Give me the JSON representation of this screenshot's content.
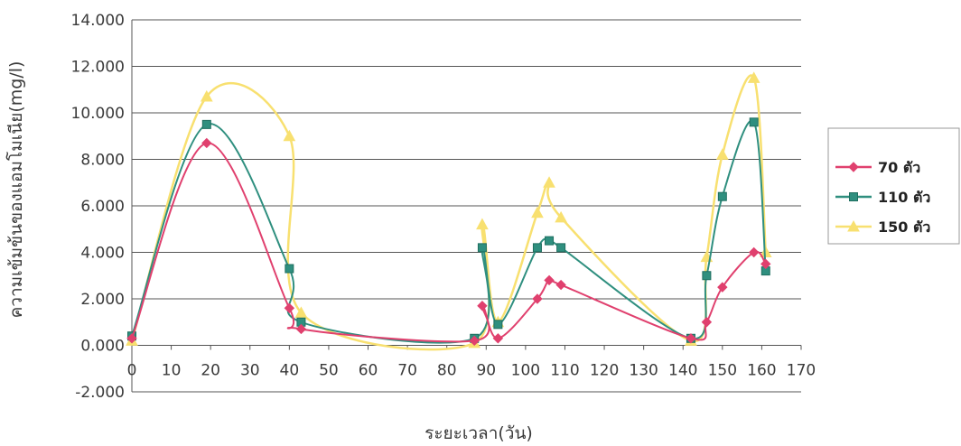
{
  "chart_data": {
    "type": "line",
    "xlabel": "ระยะเวลา(วัน)",
    "ylabel": "ความเข้มข้นของแอมโมเนีย(mg/l)",
    "xlim": [
      0,
      170
    ],
    "ylim": [
      -2,
      14
    ],
    "x_ticks": [
      0,
      10,
      20,
      30,
      40,
      50,
      60,
      70,
      80,
      90,
      100,
      110,
      120,
      130,
      140,
      150,
      160,
      170
    ],
    "x_tick_labels": [
      "0",
      "10",
      "20",
      "30",
      "40",
      "50",
      "60",
      "70",
      "80",
      "90",
      "100",
      "110",
      "120",
      "130",
      "140",
      "150",
      "160",
      "170"
    ],
    "y_ticks": [
      -2,
      0,
      2,
      4,
      6,
      8,
      10,
      12,
      14
    ],
    "y_tick_labels": [
      "-2.000",
      "0.000",
      "2.000",
      "4.000",
      "6.000",
      "8.000",
      "10.000",
      "12.000",
      "14.000"
    ],
    "grid": "horizontal",
    "legend_position": "right",
    "series": [
      {
        "name": "70 ตัว",
        "color": "#e0406e",
        "marker": "diamond",
        "points": [
          [
            0,
            0.3
          ],
          [
            19,
            8.7
          ],
          [
            40,
            1.6
          ],
          [
            43,
            0.7
          ],
          [
            87,
            0.2
          ],
          [
            89,
            1.7
          ],
          [
            93,
            0.3
          ],
          [
            103,
            2.0
          ],
          [
            106,
            2.8
          ],
          [
            109,
            2.6
          ],
          [
            142,
            0.3
          ],
          [
            146,
            1.0
          ],
          [
            150,
            2.5
          ],
          [
            158,
            4.0
          ],
          [
            161,
            3.5
          ]
        ]
      },
      {
        "name": "110 ตัว",
        "color": "#2f8f7f",
        "marker": "square",
        "points": [
          [
            0,
            0.4
          ],
          [
            19,
            9.5
          ],
          [
            40,
            3.3
          ],
          [
            43,
            1.0
          ],
          [
            87,
            0.3
          ],
          [
            89,
            4.2
          ],
          [
            93,
            0.9
          ],
          [
            103,
            4.2
          ],
          [
            106,
            4.5
          ],
          [
            109,
            4.2
          ],
          [
            142,
            0.3
          ],
          [
            146,
            3.0
          ],
          [
            150,
            6.4
          ],
          [
            158,
            9.6
          ],
          [
            161,
            3.2
          ]
        ]
      },
      {
        "name": "150 ตัว",
        "color": "#f8e070",
        "marker": "triangle",
        "points": [
          [
            0,
            0.2
          ],
          [
            19,
            10.7
          ],
          [
            40,
            9.0
          ],
          [
            43,
            1.4
          ],
          [
            87,
            0.1
          ],
          [
            89,
            5.2
          ],
          [
            93,
            1.0
          ],
          [
            103,
            5.7
          ],
          [
            106,
            7.0
          ],
          [
            109,
            5.5
          ],
          [
            142,
            0.2
          ],
          [
            146,
            3.8
          ],
          [
            150,
            8.2
          ],
          [
            158,
            11.5
          ],
          [
            161,
            4.0
          ]
        ]
      }
    ]
  }
}
